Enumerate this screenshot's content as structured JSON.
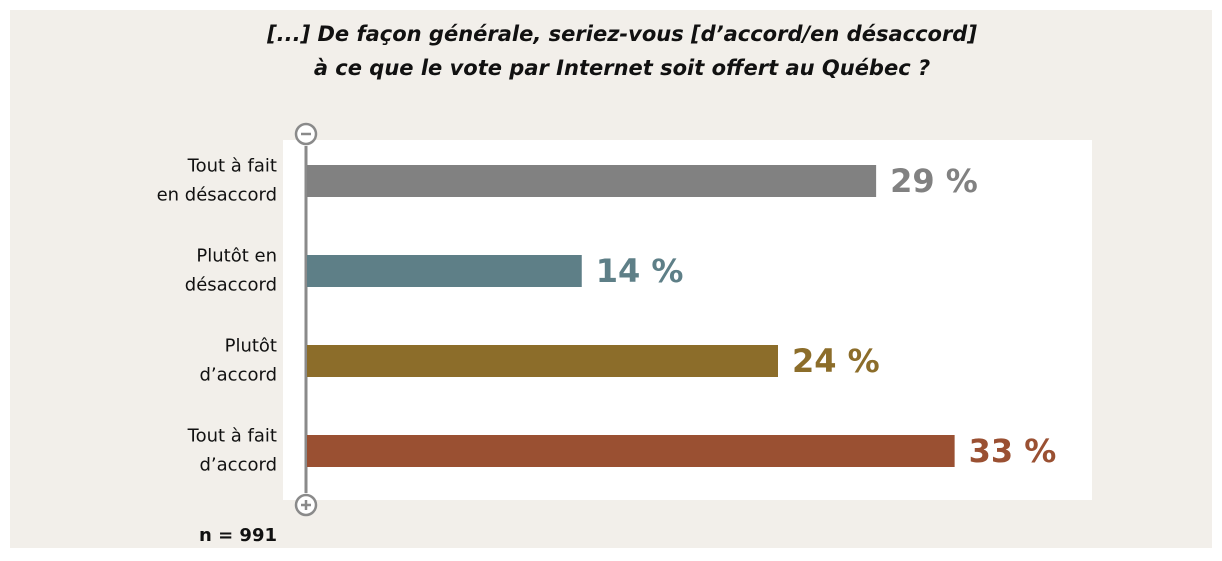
{
  "chart_data": {
    "type": "hbar",
    "title": "[...] De façon générale, seriez-vous [d’accord/en désaccord]\nà ce que le vote par Internet soit offert au Québec ?",
    "categories": [
      "Tout à fait\nen désaccord",
      "Plutôt en\ndésaccord",
      "Plutôt\nd’accord",
      "Tout à fait\nd’accord"
    ],
    "values": [
      29,
      14,
      24,
      33
    ],
    "value_labels": [
      "29 %",
      "14 %",
      "24 %",
      "33 %"
    ],
    "colors": [
      "#818181",
      "#5e7f87",
      "#8c6d2a",
      "#9a5032"
    ],
    "xlim": [
      0,
      40
    ],
    "note": "n = 991"
  }
}
